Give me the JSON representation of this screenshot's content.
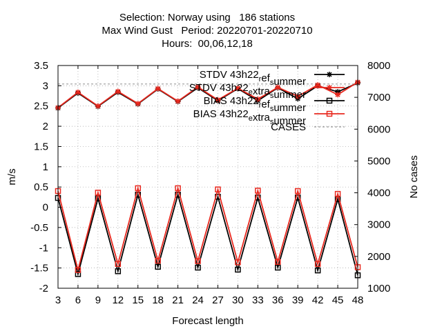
{
  "chart_data": {
    "type": "line",
    "title_lines": [
      "Selection: Norway using   186 stations",
      "Max Wind Gust   Period: 20220701-20220710",
      "Hours:  00,06,12,18"
    ],
    "xlabel": "Forecast length",
    "ylabel": "m/s",
    "y2label": "No cases",
    "x": [
      3,
      6,
      9,
      12,
      15,
      18,
      21,
      24,
      27,
      30,
      33,
      36,
      39,
      42,
      45,
      48
    ],
    "xticks": [
      3,
      6,
      9,
      12,
      15,
      18,
      21,
      24,
      27,
      30,
      33,
      36,
      39,
      42,
      45,
      48
    ],
    "ylim": [
      -2,
      3.5
    ],
    "yticks": [
      "-2",
      "-1.5",
      "-1",
      "-0.5",
      "0",
      "0.5",
      "1",
      "1.5",
      "2",
      "2.5",
      "3",
      "3.5"
    ],
    "y2lim": [
      1000,
      8000
    ],
    "y2ticks": [
      "1000",
      "2000",
      "3000",
      "4000",
      "5000",
      "6000",
      "7000",
      "8000"
    ],
    "grid": true,
    "legend_position": "top-right",
    "series": [
      {
        "name": "STDV 43h22_ref_summer",
        "axis": "y1",
        "color": "#000000",
        "marker": "star",
        "values": [
          2.45,
          2.82,
          2.49,
          2.84,
          2.55,
          2.92,
          2.61,
          2.95,
          2.63,
          2.93,
          2.63,
          2.95,
          2.68,
          3.0,
          2.85,
          3.07
        ]
      },
      {
        "name": "STDV 43h22_extra_summer",
        "axis": "y1",
        "color": "#e8281e",
        "marker": "star",
        "values": [
          2.46,
          2.84,
          2.5,
          2.86,
          2.56,
          2.93,
          2.62,
          2.97,
          2.65,
          2.94,
          2.67,
          2.96,
          2.74,
          3.02,
          2.78,
          3.09
        ]
      },
      {
        "name": "BIAS 43h22_ref_summer",
        "axis": "y1",
        "color": "#000000",
        "marker": "square",
        "values": [
          0.23,
          -1.65,
          0.22,
          -1.58,
          0.31,
          -1.47,
          0.31,
          -1.49,
          0.26,
          -1.54,
          0.24,
          -1.49,
          0.24,
          -1.56,
          0.2,
          -1.68
        ]
      },
      {
        "name": "BIAS 43h22_extra_summer",
        "axis": "y1",
        "color": "#e8281e",
        "marker": "square",
        "values": [
          0.4,
          -1.55,
          0.36,
          -1.4,
          0.47,
          -1.32,
          0.47,
          -1.33,
          0.44,
          -1.36,
          0.41,
          -1.35,
          0.4,
          -1.4,
          0.33,
          -1.48
        ]
      },
      {
        "name": "CASES",
        "axis": "y2",
        "color": "#999999",
        "marker": "none",
        "dashed": true,
        "values": [
          7420,
          7420,
          7420,
          7420,
          7420,
          7420,
          7420,
          7420,
          7420,
          7420,
          7420,
          7420,
          7420,
          7420,
          7420,
          7420
        ]
      }
    ],
    "legend": [
      {
        "series": 0,
        "parts": [
          [
            "STDV 43h22",
            ""
          ],
          [
            "r",
            "sub"
          ],
          [
            "ef",
            ""
          ],
          [
            "s",
            "sub"
          ],
          [
            "ummer",
            ""
          ]
        ]
      },
      {
        "series": 1,
        "parts": [
          [
            "STDV 43h22",
            ""
          ],
          [
            "e",
            "sub"
          ],
          [
            "xtra",
            ""
          ],
          [
            "s",
            "sub"
          ],
          [
            "ummer",
            ""
          ]
        ]
      },
      {
        "series": 2,
        "parts": [
          [
            "BIAS 43h22",
            ""
          ],
          [
            "r",
            "sub"
          ],
          [
            "ef",
            ""
          ],
          [
            "s",
            "sub"
          ],
          [
            "ummer",
            ""
          ]
        ]
      },
      {
        "series": 3,
        "parts": [
          [
            "BIAS 43h22",
            ""
          ],
          [
            "e",
            "sub"
          ],
          [
            "xtra",
            ""
          ],
          [
            "s",
            "sub"
          ],
          [
            "ummer",
            ""
          ]
        ]
      },
      {
        "series": 4,
        "parts": [
          [
            "CASES",
            ""
          ]
        ]
      }
    ]
  }
}
